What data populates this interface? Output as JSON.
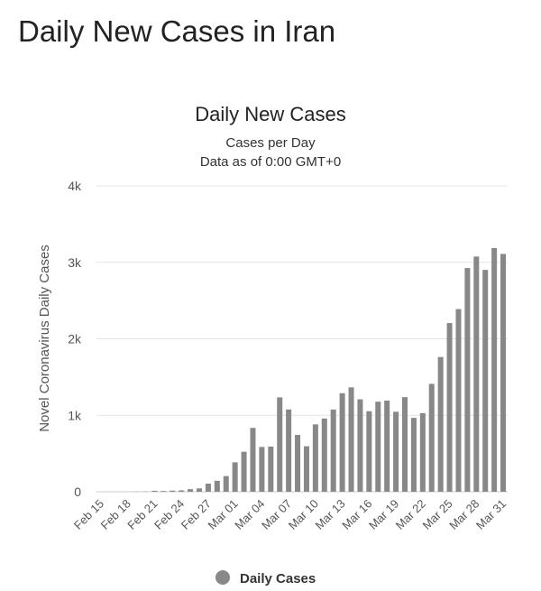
{
  "page_title": "Daily New Cases in Iran",
  "chart_data": {
    "type": "bar",
    "title": "Daily New Cases",
    "subtitle": [
      "Cases per Day",
      "Data as of 0:00 GMT+0"
    ],
    "ylabel": "Novel Coronavirus Daily Cases",
    "xlabel": "",
    "ylim": [
      0,
      4000
    ],
    "yticks": [
      0,
      1000,
      2000,
      3000,
      4000
    ],
    "ytick_labels": [
      "0",
      "1k",
      "2k",
      "3k",
      "4k"
    ],
    "grid": true,
    "legend": {
      "placement": "bottom",
      "entries": [
        "Daily Cases"
      ]
    },
    "series_color": "#888888",
    "categories": [
      "Feb 15",
      "Feb 16",
      "Feb 17",
      "Feb 18",
      "Feb 19",
      "Feb 20",
      "Feb 21",
      "Feb 22",
      "Feb 23",
      "Feb 24",
      "Feb 25",
      "Feb 26",
      "Feb 27",
      "Feb 28",
      "Feb 29",
      "Mar 01",
      "Mar 02",
      "Mar 03",
      "Mar 04",
      "Mar 05",
      "Mar 06",
      "Mar 07",
      "Mar 08",
      "Mar 09",
      "Mar 10",
      "Mar 11",
      "Mar 12",
      "Mar 13",
      "Mar 14",
      "Mar 15",
      "Mar 16",
      "Mar 17",
      "Mar 18",
      "Mar 19",
      "Mar 20",
      "Mar 21",
      "Mar 22",
      "Mar 23",
      "Mar 24",
      "Mar 25",
      "Mar 26",
      "Mar 27",
      "Mar 28",
      "Mar 29",
      "Mar 30",
      "Mar 31"
    ],
    "xtick_labels": [
      "Feb 15",
      "Feb 18",
      "Feb 21",
      "Feb 24",
      "Feb 27",
      "Mar 01",
      "Mar 04",
      "Mar 07",
      "Mar 10",
      "Mar 13",
      "Mar 16",
      "Mar 19",
      "Mar 22",
      "Mar 25",
      "Mar 28",
      "Mar 31"
    ],
    "series": [
      {
        "name": "Daily Cases",
        "values": [
          0,
          0,
          0,
          0,
          2,
          3,
          13,
          10,
          15,
          18,
          34,
          44,
          106,
          143,
          205,
          385,
          523,
          835,
          586,
          591,
          1234,
          1076,
          743,
          595,
          881,
          958,
          1075,
          1289,
          1365,
          1209,
          1053,
          1178,
          1192,
          1046,
          1237,
          966,
          1028,
          1411,
          1762,
          2206,
          2389,
          2926,
          3076,
          2901,
          3186,
          3110
        ]
      }
    ]
  }
}
